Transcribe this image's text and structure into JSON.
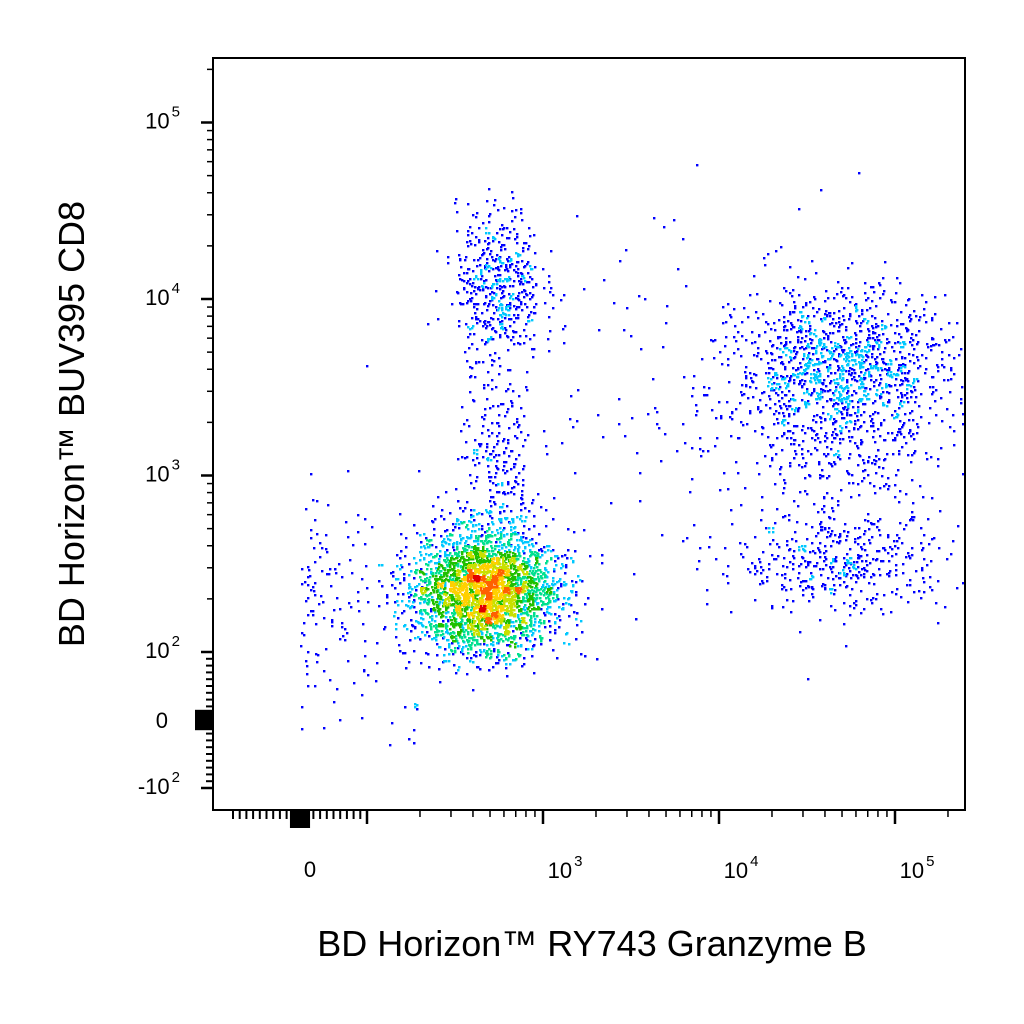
{
  "chart_data": {
    "type": "scatter",
    "title": "",
    "xlabel": "BD Horizon™ RY743 Granzyme B",
    "ylabel": "BD Horizon™ BUV395 CD8",
    "x_scale": "biexponential (logicle)",
    "y_scale": "biexponential (logicle)",
    "xlim": [
      -300,
      200000
    ],
    "ylim": [
      -120,
      250000
    ],
    "x_ticks": [
      {
        "value": 0,
        "label": "0",
        "base": "",
        "exp": ""
      },
      {
        "value": 1000,
        "label": "",
        "base": "10",
        "exp": "3"
      },
      {
        "value": 10000,
        "label": "",
        "base": "10",
        "exp": "4"
      },
      {
        "value": 100000,
        "label": "",
        "base": "10",
        "exp": "5"
      }
    ],
    "y_ticks": [
      {
        "value": -100,
        "label": "",
        "base": "-10",
        "exp": "2"
      },
      {
        "value": 0,
        "label": "0",
        "base": "",
        "exp": ""
      },
      {
        "value": 100,
        "label": "",
        "base": "10",
        "exp": "2"
      },
      {
        "value": 1000,
        "label": "",
        "base": "10",
        "exp": "3"
      },
      {
        "value": 10000,
        "label": "",
        "base": "10",
        "exp": "4"
      },
      {
        "value": 100000,
        "label": "",
        "base": "10",
        "exp": "5"
      }
    ],
    "grid": false,
    "legend": "none",
    "density_colormap": [
      "#0000ff",
      "#00c8ff",
      "#00e090",
      "#20c000",
      "#c8e000",
      "#ffd000",
      "#ff6000",
      "#e00000"
    ],
    "populations": [
      {
        "x_center": 470,
        "y_center": 220,
        "x_spread_decades": 0.2,
        "y_spread_decades": 0.17,
        "events": 6500
      },
      {
        "x_center": 560,
        "y_center": 12000,
        "x_spread_decades": 0.12,
        "y_spread_decades": 0.22,
        "events": 500
      },
      {
        "x_center": 560,
        "y_center": 1000,
        "x_spread_decades": 0.12,
        "y_spread_decades": 0.3,
        "events": 260
      },
      {
        "x_center": 50000,
        "y_center": 4000,
        "x_spread_decades": 0.3,
        "y_spread_decades": 0.22,
        "events": 1300
      },
      {
        "x_center": 50000,
        "y_center": 320,
        "x_spread_decades": 0.3,
        "y_spread_decades": 0.14,
        "events": 420
      },
      {
        "x_center": 50000,
        "y_center": 1200,
        "x_spread_decades": 0.35,
        "y_spread_decades": 0.25,
        "events": 250
      },
      {
        "x_center": 7000,
        "y_center": 3000,
        "x_spread_decades": 0.6,
        "y_spread_decades": 0.55,
        "events": 160
      },
      {
        "x_center": 80,
        "y_center": 200,
        "x_spread_decades": 0.6,
        "y_spread_decades": 0.3,
        "events": 180
      }
    ]
  }
}
